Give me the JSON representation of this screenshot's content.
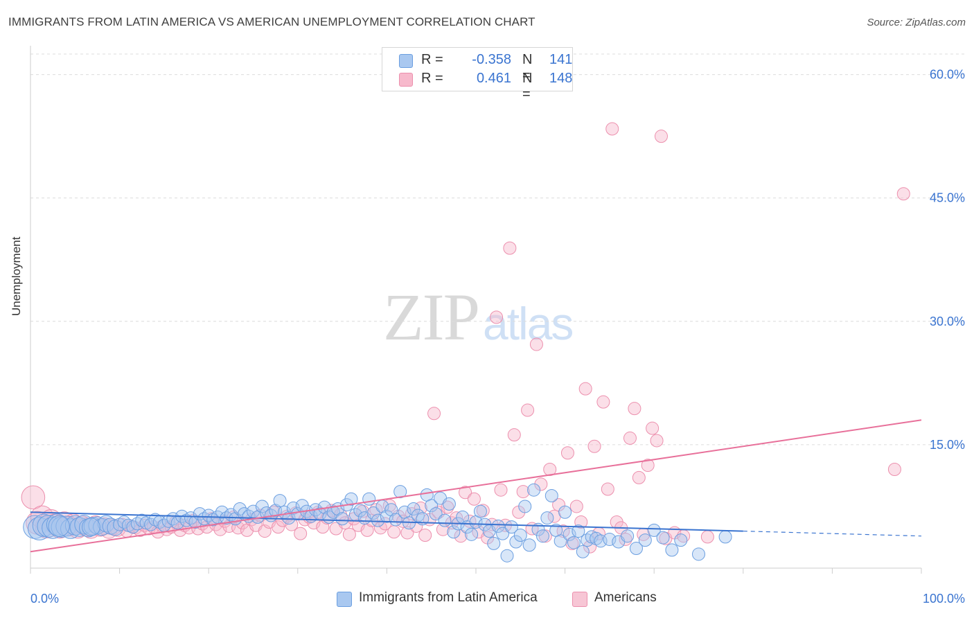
{
  "title": "IMMIGRANTS FROM LATIN AMERICA VS AMERICAN UNEMPLOYMENT CORRELATION CHART",
  "source": "Source: ZipAtlas.com",
  "watermark": {
    "zip": "ZIP",
    "atlas": "atlas"
  },
  "legend_top": [
    {
      "r_label": "R =",
      "r_value": "-0.358",
      "n_label": "N =",
      "n_value": "141",
      "color": "#a9c8f0",
      "border": "#6a9ee0"
    },
    {
      "r_label": "R =",
      "r_value": "0.461",
      "n_label": "N =",
      "n_value": "148",
      "color": "#f7b9cc",
      "border": "#ec8fad"
    }
  ],
  "legend_bottom": [
    {
      "label": "Immigrants from Latin America",
      "color": "#a9c8f0",
      "border": "#6a9ee0"
    },
    {
      "label": "Americans",
      "color": "#f7c6d5",
      "border": "#ec8fad"
    }
  ],
  "chart_data": {
    "type": "scatter",
    "title": "IMMIGRANTS FROM LATIN AMERICA VS AMERICAN UNEMPLOYMENT CORRELATION CHART",
    "xlabel": "",
    "ylabel": "Unemployment",
    "xlim": [
      0,
      100
    ],
    "ylim": [
      0,
      63
    ],
    "x_tick_labels": [
      "0.0%",
      "100.0%"
    ],
    "y_ticks": [
      15,
      30,
      45,
      60
    ],
    "y_tick_labels": [
      "15.0%",
      "30.0%",
      "45.0%",
      "60.0%"
    ],
    "grid": true,
    "colors": {
      "blue": "#3a74d0",
      "pink": "#e8709a",
      "blue_fill": "#a9c8f0",
      "pink_fill": "#f7b9cc",
      "tick_text": "#3a74d0"
    },
    "series": [
      {
        "name": "Immigrants from Latin America",
        "color": "#6a9ee0",
        "trend": {
          "x0": 0,
          "y0": 6.8,
          "x1": 80,
          "y1": 4.5,
          "dashed_to": 100,
          "dashed_y": 3.9
        },
        "points": [
          [
            0.5,
            5.0
          ],
          [
            1.0,
            4.8
          ],
          [
            1.5,
            5.2
          ],
          [
            2.0,
            5.1
          ],
          [
            2.5,
            4.9
          ],
          [
            3.0,
            5.3
          ],
          [
            3.5,
            5.0
          ],
          [
            4.0,
            5.1
          ],
          [
            4.5,
            4.8
          ],
          [
            5.0,
            5.2
          ],
          [
            5.5,
            5.0
          ],
          [
            6.0,
            5.3
          ],
          [
            6.5,
            4.9
          ],
          [
            7.0,
            5.1
          ],
          [
            7.5,
            5.2
          ],
          [
            8.0,
            5.0
          ],
          [
            8.5,
            5.4
          ],
          [
            9.0,
            5.1
          ],
          [
            9.5,
            4.9
          ],
          [
            10.0,
            5.3
          ],
          [
            10.5,
            5.6
          ],
          [
            11.0,
            5.2
          ],
          [
            11.5,
            5.0
          ],
          [
            12.0,
            5.4
          ],
          [
            12.5,
            5.8
          ],
          [
            13.0,
            5.5
          ],
          [
            13.5,
            5.3
          ],
          [
            14.0,
            5.9
          ],
          [
            14.5,
            5.6
          ],
          [
            15.0,
            5.2
          ],
          [
            15.5,
            5.7
          ],
          [
            16.0,
            6.0
          ],
          [
            16.5,
            5.5
          ],
          [
            17.0,
            6.3
          ],
          [
            17.5,
            5.8
          ],
          [
            18.0,
            6.1
          ],
          [
            18.5,
            5.6
          ],
          [
            19.0,
            6.6
          ],
          [
            19.5,
            6.0
          ],
          [
            20.0,
            6.4
          ],
          [
            20.5,
            5.9
          ],
          [
            21.0,
            6.2
          ],
          [
            21.5,
            6.8
          ],
          [
            22.0,
            6.1
          ],
          [
            22.5,
            6.5
          ],
          [
            23.0,
            6.0
          ],
          [
            23.5,
            7.2
          ],
          [
            24.0,
            6.6
          ],
          [
            24.5,
            6.3
          ],
          [
            25.0,
            6.9
          ],
          [
            25.5,
            6.2
          ],
          [
            26.0,
            7.5
          ],
          [
            26.5,
            6.7
          ],
          [
            27.0,
            6.4
          ],
          [
            27.5,
            7.0
          ],
          [
            28.0,
            8.2
          ],
          [
            28.5,
            6.8
          ],
          [
            29.0,
            6.1
          ],
          [
            29.5,
            7.3
          ],
          [
            30.0,
            6.6
          ],
          [
            30.5,
            7.6
          ],
          [
            31.0,
            6.9
          ],
          [
            31.5,
            6.3
          ],
          [
            32.0,
            7.1
          ],
          [
            32.5,
            6.6
          ],
          [
            33.0,
            7.4
          ],
          [
            33.5,
            6.2
          ],
          [
            34.0,
            6.8
          ],
          [
            34.5,
            7.2
          ],
          [
            35.0,
            6.0
          ],
          [
            35.5,
            7.7
          ],
          [
            36.0,
            8.4
          ],
          [
            36.5,
            6.5
          ],
          [
            37.0,
            7.0
          ],
          [
            37.5,
            6.1
          ],
          [
            38.0,
            8.4
          ],
          [
            38.5,
            6.7
          ],
          [
            39.0,
            5.8
          ],
          [
            39.5,
            7.5
          ],
          [
            40.0,
            6.3
          ],
          [
            40.5,
            7.1
          ],
          [
            41.0,
            5.9
          ],
          [
            41.5,
            9.3
          ],
          [
            42.0,
            6.8
          ],
          [
            42.5,
            5.5
          ],
          [
            43.0,
            7.2
          ],
          [
            43.5,
            6.4
          ],
          [
            44.0,
            6.0
          ],
          [
            44.5,
            8.9
          ],
          [
            45.0,
            7.6
          ],
          [
            45.5,
            6.6
          ],
          [
            46.0,
            8.5
          ],
          [
            46.5,
            5.8
          ],
          [
            47.0,
            7.8
          ],
          [
            47.5,
            4.4
          ],
          [
            48.0,
            5.4
          ],
          [
            48.5,
            6.2
          ],
          [
            49.0,
            5.0
          ],
          [
            49.5,
            4.1
          ],
          [
            50.0,
            5.6
          ],
          [
            50.5,
            6.9
          ],
          [
            51.0,
            5.3
          ],
          [
            51.5,
            4.5
          ],
          [
            52.0,
            3.0
          ],
          [
            52.5,
            5.1
          ],
          [
            53.0,
            4.2
          ],
          [
            53.5,
            1.5
          ],
          [
            54.0,
            5.0
          ],
          [
            54.5,
            3.2
          ],
          [
            55.0,
            4.0
          ],
          [
            55.5,
            7.5
          ],
          [
            56.0,
            2.8
          ],
          [
            56.5,
            9.5
          ],
          [
            57.0,
            4.7
          ],
          [
            57.5,
            3.9
          ],
          [
            58.0,
            6.1
          ],
          [
            58.5,
            8.8
          ],
          [
            59.0,
            4.6
          ],
          [
            59.5,
            3.3
          ],
          [
            60.0,
            6.8
          ],
          [
            60.5,
            4.1
          ],
          [
            61.0,
            3.1
          ],
          [
            61.5,
            4.5
          ],
          [
            62.0,
            2.0
          ],
          [
            62.5,
            3.4
          ],
          [
            63.0,
            3.8
          ],
          [
            63.5,
            3.6
          ],
          [
            64.0,
            3.3
          ],
          [
            65.0,
            3.5
          ],
          [
            66.0,
            3.2
          ],
          [
            67.0,
            3.9
          ],
          [
            68.0,
            2.4
          ],
          [
            69.0,
            3.4
          ],
          [
            70.0,
            4.6
          ],
          [
            71.0,
            3.7
          ],
          [
            72.0,
            2.2
          ],
          [
            73.0,
            3.4
          ],
          [
            75.0,
            1.7
          ],
          [
            78.0,
            3.8
          ],
          [
            3.2,
            5.1
          ],
          [
            6.8,
            5.0
          ]
        ]
      },
      {
        "name": "Americans",
        "color": "#ec8fad",
        "trend": {
          "x0": 0,
          "y0": 2.0,
          "x1": 100,
          "y1": 18.0
        },
        "points": [
          [
            0.3,
            8.6
          ],
          [
            0.8,
            5.5
          ],
          [
            1.3,
            6.2
          ],
          [
            1.8,
            5.0
          ],
          [
            2.3,
            5.8
          ],
          [
            2.8,
            5.3
          ],
          [
            3.3,
            4.9
          ],
          [
            3.8,
            5.6
          ],
          [
            4.3,
            5.1
          ],
          [
            4.8,
            5.4
          ],
          [
            5.3,
            4.8
          ],
          [
            5.8,
            5.2
          ],
          [
            6.3,
            5.0
          ],
          [
            6.8,
            4.7
          ],
          [
            7.3,
            5.3
          ],
          [
            7.8,
            4.9
          ],
          [
            8.3,
            5.1
          ],
          [
            8.8,
            4.6
          ],
          [
            9.3,
            5.0
          ],
          [
            9.8,
            4.8
          ],
          [
            10.3,
            5.3
          ],
          [
            10.8,
            4.5
          ],
          [
            11.3,
            5.1
          ],
          [
            11.8,
            4.9
          ],
          [
            12.3,
            4.6
          ],
          [
            12.8,
            5.2
          ],
          [
            13.3,
            4.8
          ],
          [
            13.8,
            5.0
          ],
          [
            14.3,
            4.4
          ],
          [
            14.8,
            5.1
          ],
          [
            15.3,
            4.7
          ],
          [
            15.8,
            5.0
          ],
          [
            16.3,
            5.6
          ],
          [
            16.8,
            4.6
          ],
          [
            17.3,
            5.2
          ],
          [
            17.8,
            4.9
          ],
          [
            18.3,
            5.8
          ],
          [
            18.8,
            4.8
          ],
          [
            19.3,
            5.4
          ],
          [
            19.8,
            5.0
          ],
          [
            20.3,
            6.0
          ],
          [
            20.8,
            5.3
          ],
          [
            21.3,
            4.7
          ],
          [
            21.8,
            5.7
          ],
          [
            22.3,
            5.1
          ],
          [
            22.8,
            6.2
          ],
          [
            23.3,
            4.9
          ],
          [
            23.8,
            5.5
          ],
          [
            24.3,
            4.6
          ],
          [
            24.8,
            5.9
          ],
          [
            25.3,
            5.2
          ],
          [
            25.8,
            6.4
          ],
          [
            26.3,
            4.5
          ],
          [
            26.8,
            5.6
          ],
          [
            27.3,
            6.8
          ],
          [
            27.8,
            5.0
          ],
          [
            28.3,
            5.8
          ],
          [
            28.8,
            6.3
          ],
          [
            29.3,
            5.3
          ],
          [
            29.8,
            6.7
          ],
          [
            30.3,
            4.2
          ],
          [
            30.8,
            5.9
          ],
          [
            31.3,
            6.2
          ],
          [
            31.8,
            5.5
          ],
          [
            32.3,
            6.8
          ],
          [
            32.8,
            5.0
          ],
          [
            33.3,
            6.1
          ],
          [
            33.8,
            7.0
          ],
          [
            34.3,
            4.8
          ],
          [
            34.8,
            6.5
          ],
          [
            35.3,
            5.5
          ],
          [
            35.8,
            4.1
          ],
          [
            36.3,
            6.0
          ],
          [
            36.8,
            5.2
          ],
          [
            37.3,
            6.9
          ],
          [
            37.8,
            4.6
          ],
          [
            38.3,
            5.8
          ],
          [
            38.8,
            7.1
          ],
          [
            39.3,
            4.9
          ],
          [
            39.8,
            5.4
          ],
          [
            40.3,
            7.6
          ],
          [
            40.8,
            4.4
          ],
          [
            41.3,
            6.3
          ],
          [
            41.8,
            5.7
          ],
          [
            42.3,
            4.3
          ],
          [
            42.8,
            6.6
          ],
          [
            43.3,
            5.1
          ],
          [
            43.8,
            7.3
          ],
          [
            44.3,
            4.0
          ],
          [
            44.8,
            5.9
          ],
          [
            45.3,
            18.8
          ],
          [
            45.8,
            6.8
          ],
          [
            46.3,
            4.7
          ],
          [
            46.8,
            7.4
          ],
          [
            47.3,
            5.5
          ],
          [
            47.8,
            6.1
          ],
          [
            48.3,
            3.9
          ],
          [
            48.8,
            9.2
          ],
          [
            49.3,
            5.7
          ],
          [
            49.8,
            8.4
          ],
          [
            50.3,
            4.4
          ],
          [
            50.8,
            7.0
          ],
          [
            51.3,
            3.7
          ],
          [
            51.8,
            5.3
          ],
          [
            52.3,
            30.5
          ],
          [
            52.8,
            9.5
          ],
          [
            53.3,
            5.2
          ],
          [
            53.8,
            38.9
          ],
          [
            54.3,
            16.2
          ],
          [
            54.8,
            6.8
          ],
          [
            55.3,
            9.3
          ],
          [
            55.8,
            19.2
          ],
          [
            56.3,
            4.8
          ],
          [
            56.8,
            27.2
          ],
          [
            57.3,
            10.2
          ],
          [
            57.8,
            3.9
          ],
          [
            58.3,
            12.0
          ],
          [
            58.8,
            6.3
          ],
          [
            59.3,
            7.7
          ],
          [
            59.8,
            4.5
          ],
          [
            60.3,
            14.0
          ],
          [
            60.8,
            3.0
          ],
          [
            61.3,
            7.5
          ],
          [
            61.8,
            5.6
          ],
          [
            62.3,
            21.8
          ],
          [
            62.8,
            2.6
          ],
          [
            63.3,
            14.8
          ],
          [
            63.8,
            4.2
          ],
          [
            64.3,
            20.2
          ],
          [
            64.8,
            9.6
          ],
          [
            65.3,
            53.4
          ],
          [
            65.8,
            5.6
          ],
          [
            66.3,
            4.9
          ],
          [
            66.8,
            3.5
          ],
          [
            67.3,
            15.8
          ],
          [
            67.8,
            19.4
          ],
          [
            68.3,
            11.0
          ],
          [
            68.8,
            4.1
          ],
          [
            69.3,
            12.5
          ],
          [
            69.8,
            17.0
          ],
          [
            70.3,
            15.5
          ],
          [
            70.8,
            52.5
          ],
          [
            71.3,
            3.6
          ],
          [
            72.3,
            4.3
          ],
          [
            73.3,
            3.9
          ],
          [
            98.0,
            45.5
          ],
          [
            97.0,
            12.0
          ],
          [
            76.0,
            3.8
          ]
        ]
      }
    ]
  }
}
